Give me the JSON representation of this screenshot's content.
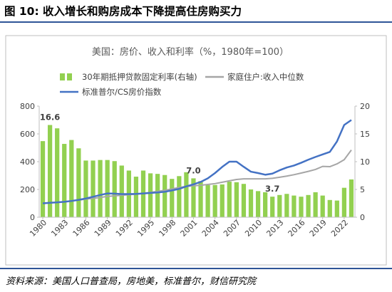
{
  "figure_title": "图 10: 收入增长和购房成本下降提高住房购买力",
  "source": "资料来源：美国人口普查局，房地美，标准普尔，财信研究院",
  "chart_data": {
    "type": "bar+line",
    "title": "美国：房价、收入和利率（%，1980年=100）",
    "legend": [
      {
        "key": "rate",
        "label": "30年期抵押贷款固定利率(右轴)",
        "color": "#92d050",
        "kind": "bar"
      },
      {
        "key": "income_ratio",
        "label": "家庭住户:收入中位数",
        "color": "#a6a6a6",
        "kind": "line"
      },
      {
        "key": "cs_index",
        "label": "标准普尔/CS房价指数",
        "color": "#4472c4",
        "kind": "line"
      }
    ],
    "legend_placement": "top",
    "grid": false,
    "y_left": {
      "min": 0,
      "max": 800,
      "ticks": [
        0,
        200,
        400,
        600,
        800
      ]
    },
    "y_right": {
      "min": 0,
      "max": 20,
      "ticks": [
        0,
        5,
        10,
        15,
        20
      ]
    },
    "x_tick_labels": [
      "1980",
      "1983",
      "1986",
      "1989",
      "1992",
      "1995",
      "1998",
      "2001",
      "2004",
      "2007",
      "2010",
      "2013",
      "2016",
      "2019",
      "2022"
    ],
    "years": [
      1980,
      1981,
      1982,
      1983,
      1984,
      1985,
      1986,
      1987,
      1988,
      1989,
      1990,
      1991,
      1992,
      1993,
      1994,
      1995,
      1996,
      1997,
      1998,
      1999,
      2000,
      2001,
      2002,
      2003,
      2004,
      2005,
      2006,
      2007,
      2008,
      2009,
      2010,
      2011,
      2012,
      2013,
      2014,
      2015,
      2016,
      2017,
      2018,
      2019,
      2020,
      2021,
      2022,
      2023
    ],
    "series": [
      {
        "key": "rate",
        "axis": "right",
        "values": [
          13.7,
          16.6,
          16.0,
          13.2,
          13.9,
          12.4,
          10.2,
          10.2,
          10.3,
          10.3,
          10.1,
          9.3,
          8.4,
          7.3,
          8.4,
          7.9,
          7.8,
          7.6,
          6.9,
          7.4,
          8.1,
          7.0,
          6.5,
          5.8,
          5.8,
          5.9,
          6.4,
          6.3,
          6.0,
          5.0,
          4.7,
          4.5,
          3.7,
          4.0,
          4.2,
          3.9,
          3.7,
          4.0,
          4.5,
          3.9,
          3.1,
          3.0,
          5.3,
          6.8
        ]
      },
      {
        "key": "income_ratio",
        "axis": "left",
        "values": [
          100,
          104,
          108,
          112,
          118,
          124,
          130,
          136,
          142,
          150,
          154,
          158,
          162,
          166,
          172,
          178,
          186,
          194,
          204,
          214,
          222,
          226,
          230,
          236,
          242,
          252,
          262,
          272,
          276,
          276,
          276,
          276,
          280,
          288,
          296,
          306,
          318,
          330,
          344,
          366,
          364,
          384,
          414,
          484
        ]
      },
      {
        "key": "cs_index",
        "axis": "left",
        "values": [
          100,
          104,
          107,
          111,
          117,
          125,
          135,
          147,
          160,
          171,
          170,
          167,
          167,
          168,
          171,
          175,
          178,
          183,
          193,
          204,
          222,
          237,
          254,
          280,
          318,
          362,
          400,
          400,
          363,
          328,
          318,
          306,
          314,
          338,
          358,
          372,
          392,
          414,
          434,
          452,
          470,
          546,
          664,
          700
        ]
      }
    ],
    "annotations": [
      {
        "text": "16.6",
        "year": 1981,
        "series": "rate"
      },
      {
        "text": "7.0",
        "year": 2001,
        "series": "rate"
      },
      {
        "text": "3.7",
        "year": 2012,
        "series": "rate"
      }
    ]
  }
}
